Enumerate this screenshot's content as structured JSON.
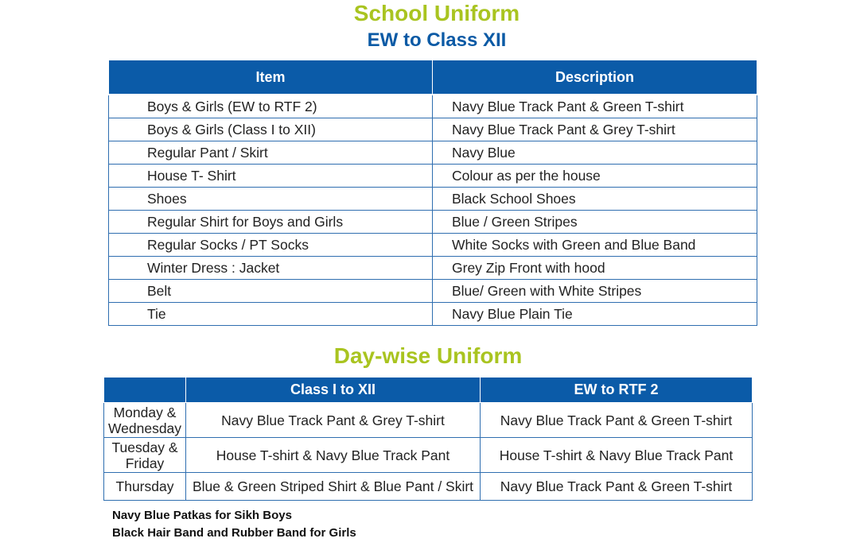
{
  "title": "School Uniform",
  "subtitle": "EW to Class XII",
  "uniform_table": {
    "headers": [
      "Item",
      "Description"
    ],
    "rows": [
      [
        "Boys & Girls (EW to RTF 2)",
        "Navy Blue Track Pant & Green T-shirt"
      ],
      [
        "Boys & Girls (Class I to XII)",
        "Navy Blue Track Pant & Grey T-shirt"
      ],
      [
        "Regular Pant / Skirt",
        "Navy Blue"
      ],
      [
        "House T- Shirt",
        "Colour as per the house"
      ],
      [
        "Shoes",
        "Black School Shoes"
      ],
      [
        "Regular Shirt for Boys and Girls",
        "Blue / Green Stripes"
      ],
      [
        "Regular Socks / PT Socks",
        "White Socks with Green and Blue Band"
      ],
      [
        "Winter Dress : Jacket",
        "Grey Zip Front with hood"
      ],
      [
        "Belt",
        "Blue/ Green with White Stripes"
      ],
      [
        "Tie",
        "Navy Blue Plain Tie"
      ]
    ]
  },
  "daywise_title": "Day-wise Uniform",
  "daywise_table": {
    "headers": [
      "",
      "Class I to XII",
      "EW to RTF 2"
    ],
    "rows": [
      [
        "Monday & Wednesday",
        "Navy Blue Track Pant & Grey T-shirt",
        "Navy Blue Track Pant & Green T-shirt"
      ],
      [
        "Tuesday & Friday",
        "House T-shirt & Navy Blue Track Pant",
        "House T-shirt & Navy Blue Track Pant"
      ],
      [
        "Thursday",
        "Blue & Green Striped Shirt & Blue Pant / Skirt",
        "Navy Blue Track Pant & Green T-shirt"
      ]
    ]
  },
  "notes": [
    "Navy Blue Patkas for Sikh Boys",
    "Black Hair Band and Rubber Band for Girls"
  ],
  "colors": {
    "title_green": "#a9c420",
    "header_blue": "#0b5ba8"
  }
}
